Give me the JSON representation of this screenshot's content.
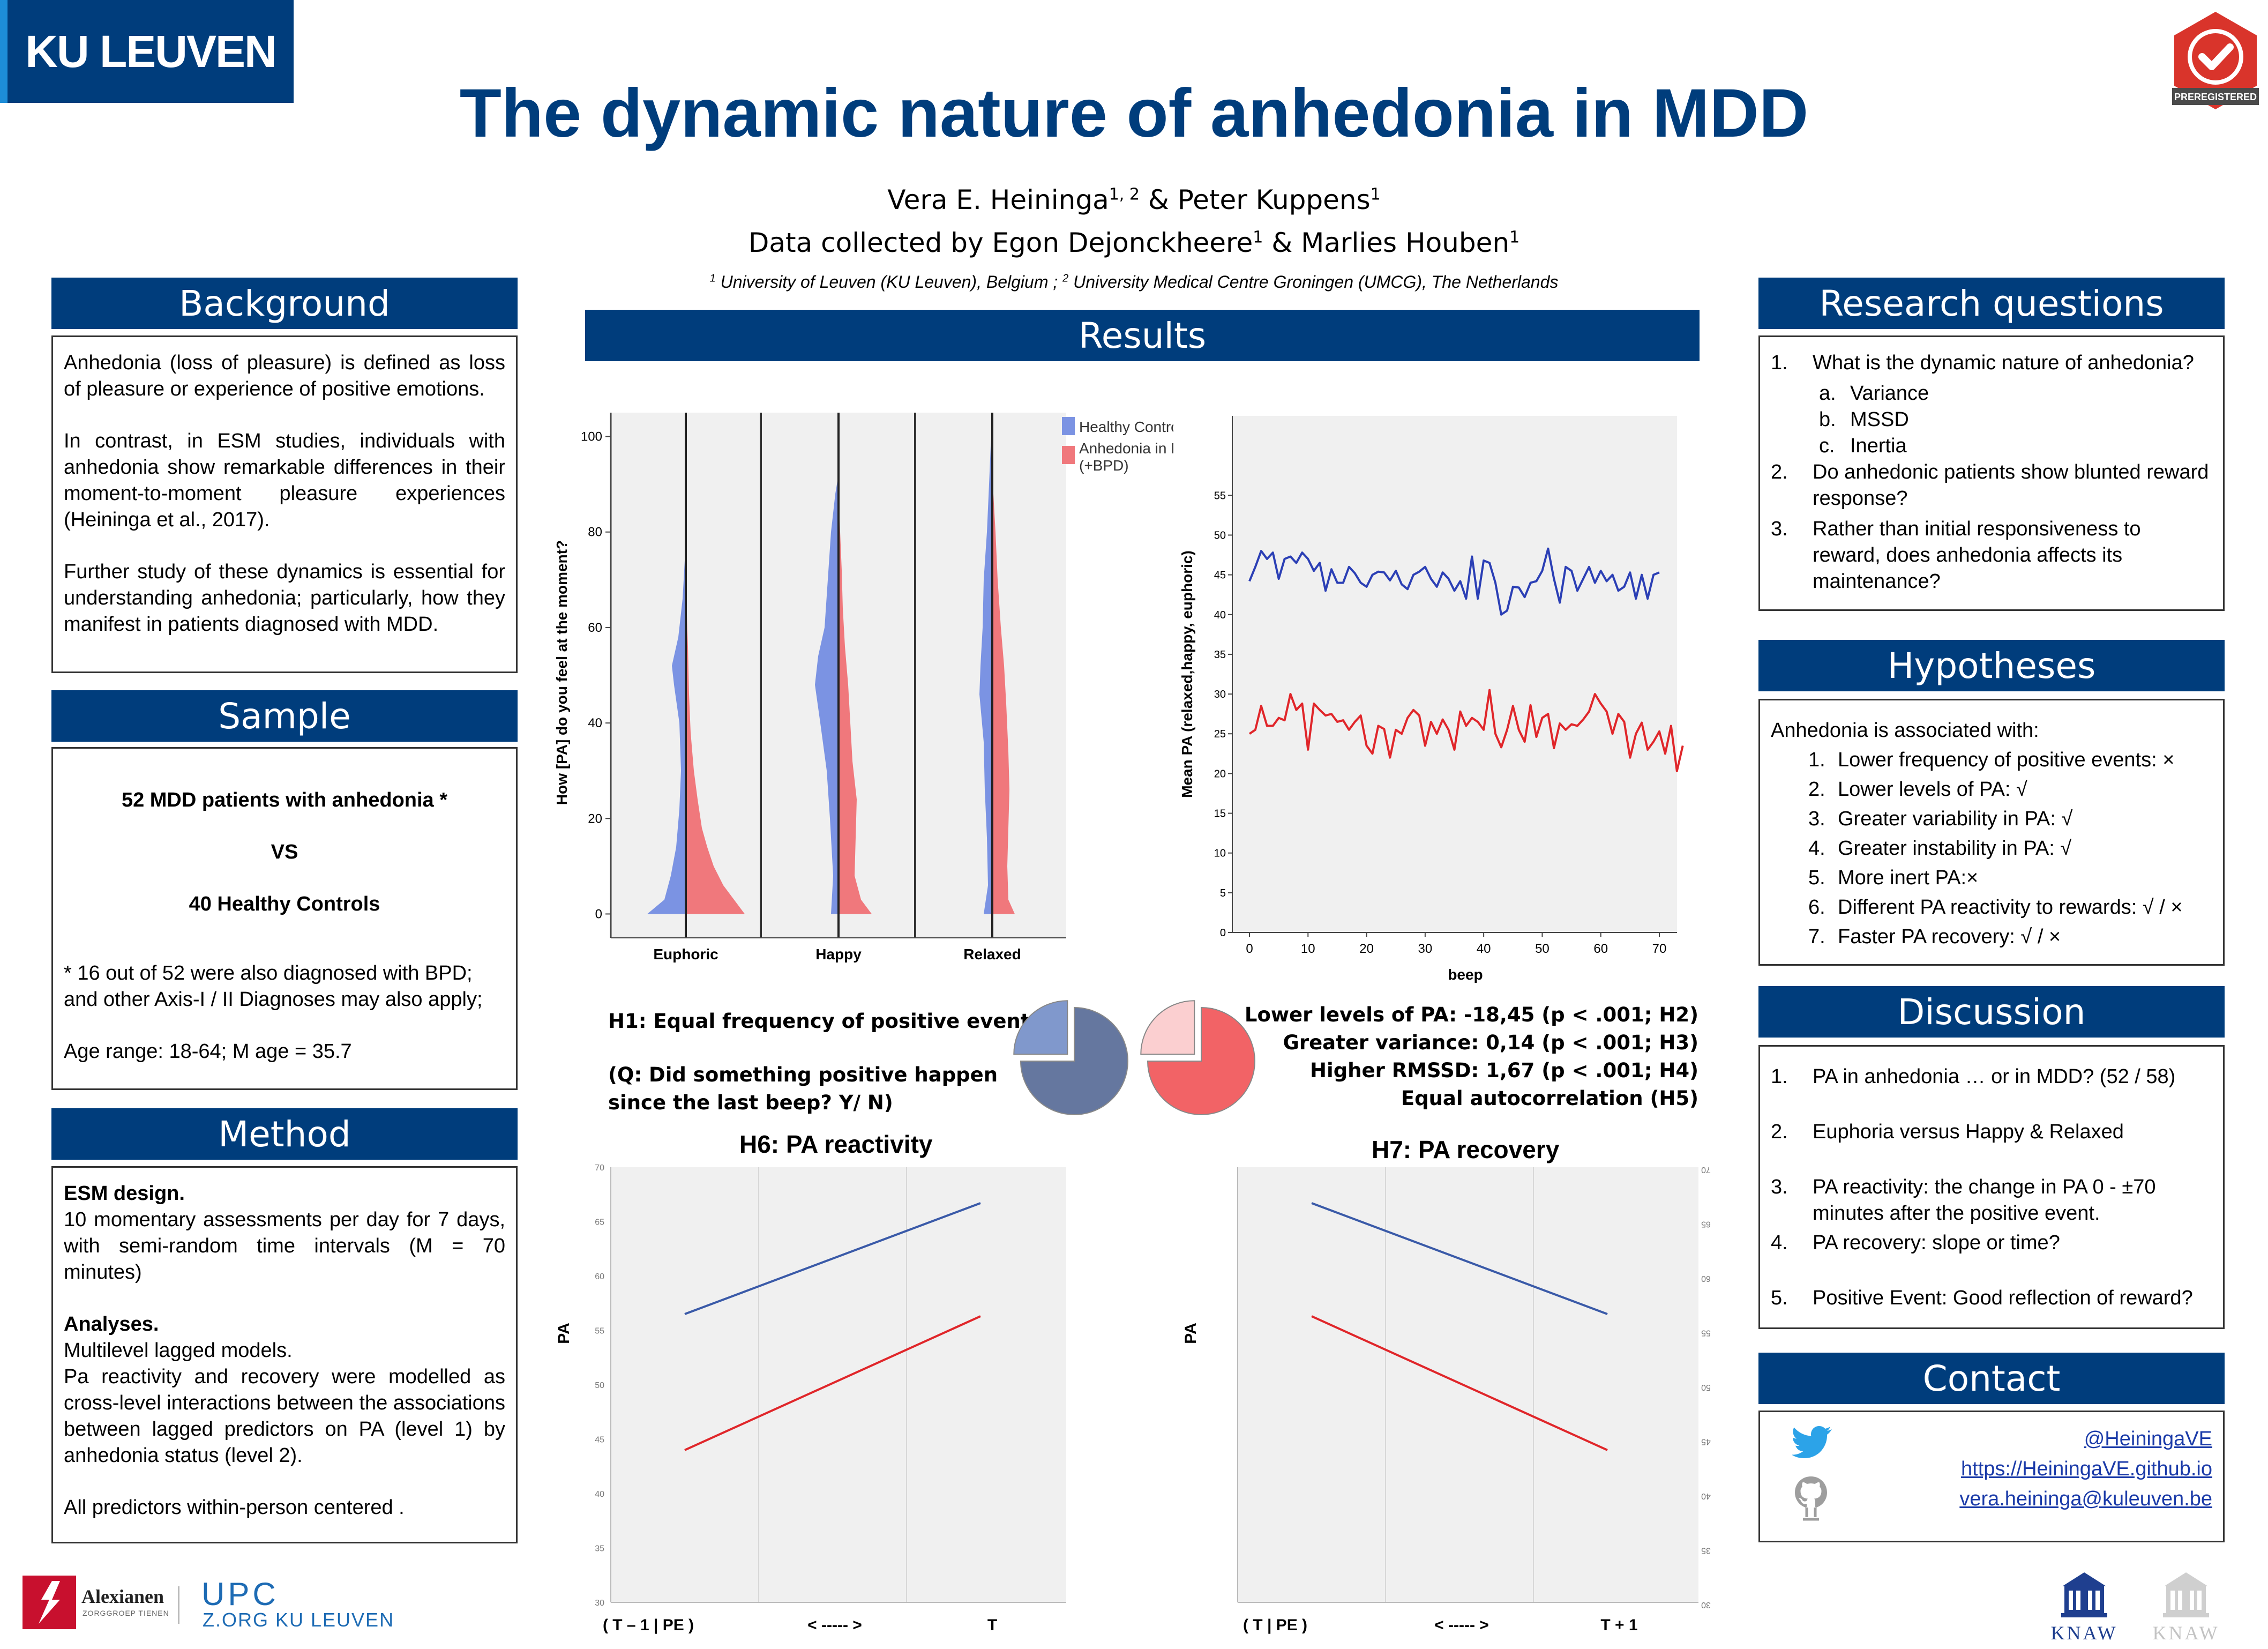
{
  "header": {
    "institution_logo": "KU LEUVEN",
    "title": "The dynamic nature of anhedonia in MDD",
    "authors": {
      "a1": "Vera E. Heininga",
      "a1_sup": "1, 2",
      "amp": " & ",
      "a2": "Peter Kuppens",
      "a2_sup": "1"
    },
    "collected": {
      "prefix": "Data collected by ",
      "c1": "Egon Dejonckheere",
      "c1_sup": "1",
      "amp": " & ",
      "c2": "Marlies Houben",
      "c2_sup": "1"
    },
    "affiliations": {
      "s1": "1",
      "t1": " University of Leuven (KU Leuven), Belgium ; ",
      "s2": "2",
      "t2": " University Medical Centre Groningen (UMCG), The Netherlands"
    },
    "badge_text": "PREREGISTERED",
    "badge_color": "#d9342b"
  },
  "background": {
    "title": "Background",
    "p1": "Anhedonia (loss of pleasure) is defined as loss of pleasure or experience of positive emotions.",
    "p2": "In contrast, in ESM studies, individuals with anhedonia show remarkable differences in their moment-to-moment pleasure experiences (Heininga et al., 2017).",
    "p3": "Further study of these dynamics is essential for understanding anhedonia; particularly, how they manifest in patients diagnosed with MDD."
  },
  "sample": {
    "title": "Sample",
    "line1": "52 MDD patients with anhedonia  *",
    "vs": "VS",
    "line2": "40 Healthy Controls",
    "note": "* 16 out of 52 were also diagnosed with BPD; and other Axis-I / II Diagnoses may also apply;",
    "age": "Age range: 18-64; M age = 35.7"
  },
  "method": {
    "title": "Method",
    "design_head": "ESM design.",
    "design": "10 momentary assessments per day for 7 days, with semi-random time intervals (M = 70 minutes)",
    "analyses_head": "Analyses.",
    "analyses1": "Multilevel lagged models.",
    "analyses2": "Pa reactivity and recovery were modelled as cross-level interactions between the associations between lagged predictors on PA (level 1) by anhedonia status (level 2).",
    "analyses3": "All predictors within-person centered ."
  },
  "results": {
    "title": "Results",
    "h1_line1": "H1: Equal frequency of positive events",
    "h1_line2": "(Q: Did something positive happen",
    "h1_line3": "since the last beep? Y/ N)",
    "stat1": "Lower levels of PA: -18,45 (p < .001; H2)",
    "stat2": "Greater variance: 0,14 (p < .001; H3)",
    "stat3": "Higher RMSSD: 1,67 (p < .001; H4)",
    "stat4": "Equal autocorrelation (H5)"
  },
  "research_questions": {
    "title": "Research questions",
    "items": [
      {
        "n": "1.",
        "text": "What is the dynamic nature of anhedonia?"
      },
      {
        "n": "a.",
        "text": "Variance"
      },
      {
        "n": "b.",
        "text": "MSSD"
      },
      {
        "n": "c.",
        "text": "Inertia"
      },
      {
        "n": "2.",
        "text": "Do anhedonic patients show blunted reward response?"
      },
      {
        "n": "3.",
        "text": "Rather than initial responsiveness to reward, does anhedonia affects its maintenance?"
      }
    ]
  },
  "hypotheses": {
    "title": "Hypotheses",
    "intro": "Anhedonia is associated with:",
    "items": [
      {
        "n": "1.",
        "text": "Lower frequency of positive events:  ×"
      },
      {
        "n": "2.",
        "text": "Lower levels of PA: √"
      },
      {
        "n": "3.",
        "text": "Greater variability in PA: √"
      },
      {
        "n": "4.",
        "text": "Greater instability in PA: √"
      },
      {
        "n": "5.",
        "text": "More inert PA:×"
      },
      {
        "n": "6.",
        "text": "Different PA reactivity to rewards:  √ / ×"
      },
      {
        "n": "7.",
        "text": "Faster PA recovery:  √ / ×"
      }
    ]
  },
  "discussion": {
    "title": "Discussion",
    "items": [
      {
        "n": "1.",
        "text": "PA in anhedonia … or in MDD? (52 / 58)"
      },
      {
        "n": "2.",
        "text": "Euphoria versus Happy & Relaxed"
      },
      {
        "n": "3.",
        "text": "PA reactivity: the change in PA 0 - ±70 minutes after the positive event."
      },
      {
        "n": "4.",
        "text": "PA recovery: slope or time?"
      },
      {
        "n": "5.",
        "text": "Positive Event: Good reflection of reward?"
      }
    ]
  },
  "contact": {
    "title": "Contact",
    "twitter": "@HeiningaVE",
    "website": "https://HeiningaVE.github.io",
    "email": "vera.heininga@kuleuven.be"
  },
  "footer": {
    "alexianen": "Alexianen",
    "alexianen_sub": "ZORGGROEP TIENEN",
    "upc": "UPC",
    "upc_sub": "Z.ORG KU LEUVEN",
    "knaw": "KNAW",
    "knaw2": "KNAW"
  },
  "chart_data": [
    {
      "type": "violin",
      "title": "",
      "ylabel": "How [PA] do you feel at the moment?",
      "categories": [
        "Euphoric",
        "Happy",
        "Relaxed"
      ],
      "yticks": [
        0,
        20,
        40,
        60,
        80,
        100
      ],
      "ylim": [
        -5,
        105
      ],
      "legend": [
        "Healthy Controls",
        "Anhedonia in MDD (+BPD)"
      ],
      "colors": {
        "hc": "#7b93e3",
        "mdd": "#f0787c"
      },
      "legend_placement": "top-right"
    },
    {
      "type": "line",
      "title": "",
      "xlabel": "beep",
      "ylabel": "Mean PA (relaxed,happy, euphoric)",
      "xticks": [
        0,
        10,
        20,
        30,
        40,
        50,
        60,
        70
      ],
      "yticks": [
        0,
        5,
        10,
        15,
        20,
        25,
        30,
        35,
        40,
        45,
        50,
        55
      ],
      "ylim": [
        0,
        65
      ],
      "series": [
        {
          "color": "#2b3fb5",
          "values": [
            44.2,
            46,
            48,
            47,
            47.8,
            44.5,
            47,
            47.3,
            46.5,
            47.8,
            47,
            45.5,
            46.5,
            43,
            45.7,
            44,
            44,
            46,
            45.2,
            44,
            43.5,
            45,
            45.4,
            45.3,
            44.3,
            45.5,
            43.8,
            43.2,
            45,
            45.4,
            46,
            44.5,
            43.5,
            45.3,
            44.5,
            43,
            44.2,
            42,
            47.3,
            42,
            46.8,
            46.5,
            44,
            40,
            40.5,
            43.5,
            43.4,
            42.2,
            44,
            44.2,
            45.5,
            48.3,
            44.5,
            41.5,
            46,
            45.5,
            43,
            44.5,
            46,
            44,
            45.5,
            44.2,
            45,
            43,
            43.5,
            45.3,
            42,
            45,
            42,
            45,
            45.3
          ]
        },
        {
          "color": "#e0262a",
          "values": [
            25,
            25.5,
            28.5,
            26,
            26,
            27,
            26.7,
            30,
            28,
            28.8,
            23,
            28.8,
            28,
            27.3,
            27.5,
            26.5,
            26.7,
            25.5,
            26.5,
            27.3,
            23.5,
            22.5,
            26,
            25.6,
            22,
            25.5,
            25,
            27,
            28,
            27.3,
            23.5,
            26.5,
            25,
            26.8,
            25.5,
            23,
            27.8,
            26,
            27,
            26.5,
            25.5,
            30.5,
            25,
            23.3,
            25.5,
            28.5,
            25.5,
            24,
            28.6,
            24.6,
            27,
            27.5,
            23.2,
            26.3,
            25.5,
            26.2,
            26,
            26.8,
            27.8,
            30,
            28.8,
            27.8,
            25,
            27.5,
            26.5,
            22,
            25,
            26.4,
            23,
            24,
            25.3,
            22.5,
            26,
            20.3,
            23.5
          ]
        }
      ]
    },
    {
      "type": "pie",
      "title": "",
      "slices": [
        {
          "group": "Healthy Controls",
          "values": [
            75,
            25
          ],
          "colors": [
            "#65779f",
            "#8098cc"
          ]
        },
        {
          "group": "Anhedonia in MDD",
          "values": [
            75,
            25
          ],
          "colors": [
            "#f26366",
            "#fbcfd0"
          ]
        }
      ]
    },
    {
      "type": "line",
      "title": "H6: PA reactivity",
      "ylabel": "PA",
      "xticks": [
        "( T – 1 | PE )",
        "< ----- >",
        "T"
      ],
      "ylim": [
        30,
        70
      ],
      "yticks": [
        30,
        35,
        40,
        45,
        50,
        55,
        60,
        65,
        70
      ],
      "series": [
        {
          "color": "#3a5aa8",
          "values": [
            56.5,
            66.7
          ]
        },
        {
          "color": "#e0262a",
          "values": [
            44,
            56.3
          ]
        }
      ]
    },
    {
      "type": "line",
      "title": "H7: PA recovery",
      "ylabel": "PA",
      "xticks": [
        "( T | PE )",
        "< ----- >",
        "T + 1"
      ],
      "ylim": [
        30,
        70
      ],
      "yticks": [
        30,
        35,
        40,
        45,
        50,
        55,
        60,
        65,
        70
      ],
      "series": [
        {
          "color": "#3a5aa8",
          "values": [
            66.7,
            56.5
          ]
        },
        {
          "color": "#e0262a",
          "values": [
            56.3,
            44
          ]
        }
      ]
    }
  ]
}
